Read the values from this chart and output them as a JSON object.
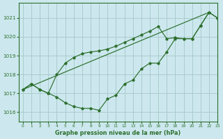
{
  "title": "Graphe pression niveau de la mer (hPa)",
  "background_color": "#cce8ee",
  "grid_color": "#aacccc",
  "line_color": "#2d6e2d",
  "xlim": [
    -0.5,
    23
  ],
  "ylim": [
    1015.5,
    1021.8
  ],
  "yticks": [
    1016,
    1017,
    1018,
    1019,
    1020,
    1021
  ],
  "xticks": [
    0,
    1,
    2,
    3,
    4,
    5,
    6,
    7,
    8,
    9,
    10,
    11,
    12,
    13,
    14,
    15,
    16,
    17,
    18,
    19,
    20,
    21,
    22,
    23
  ],
  "series1": [
    [
      0,
      1017.2
    ],
    [
      1,
      1017.5
    ],
    [
      2,
      1017.2
    ],
    [
      3,
      1017.0
    ],
    [
      4,
      1016.8
    ],
    [
      5,
      1016.5
    ],
    [
      6,
      1016.3
    ],
    [
      7,
      1016.2
    ],
    [
      8,
      1016.2
    ],
    [
      9,
      1016.1
    ],
    [
      10,
      1016.7
    ],
    [
      11,
      1016.9
    ],
    [
      12,
      1017.5
    ],
    [
      13,
      1017.7
    ],
    [
      14,
      1018.3
    ],
    [
      15,
      1018.6
    ],
    [
      16,
      1018.6
    ],
    [
      17,
      1019.2
    ],
    [
      18,
      1019.9
    ],
    [
      19,
      1019.9
    ],
    [
      20,
      1019.9
    ],
    [
      21,
      1020.6
    ],
    [
      22,
      1021.3
    ],
    [
      23,
      1021.0
    ]
  ],
  "series2": [
    [
      0,
      1017.2
    ],
    [
      1,
      1017.5
    ],
    [
      2,
      1017.2
    ],
    [
      3,
      1017.0
    ],
    [
      4,
      1018.0
    ],
    [
      5,
      1018.6
    ],
    [
      6,
      1018.9
    ],
    [
      7,
      1019.1
    ],
    [
      8,
      1019.2
    ],
    [
      9,
      1019.25
    ],
    [
      10,
      1019.35
    ],
    [
      11,
      1019.5
    ],
    [
      12,
      1019.7
    ],
    [
      13,
      1019.9
    ],
    [
      14,
      1020.1
    ],
    [
      15,
      1020.3
    ],
    [
      16,
      1020.55
    ],
    [
      17,
      1019.9
    ],
    [
      18,
      1019.95
    ],
    [
      19,
      1019.9
    ],
    [
      20,
      1019.9
    ],
    [
      21,
      1020.6
    ],
    [
      22,
      1021.3
    ],
    [
      23,
      1021.0
    ]
  ],
  "series3_x": [
    0,
    22
  ],
  "series3_y": [
    1017.2,
    1021.3
  ]
}
